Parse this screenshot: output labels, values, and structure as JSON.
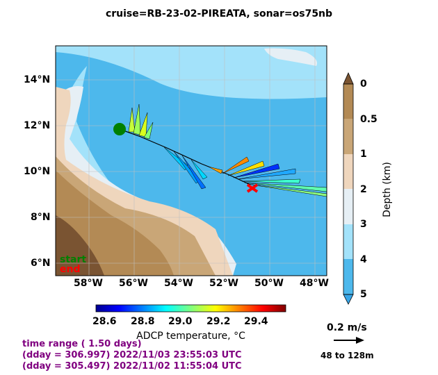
{
  "title": "cruise=RB-23-02-PIREATA,   sonar=os75nb",
  "map": {
    "lon_ticks": [
      "58°W",
      "56°W",
      "54°W",
      "52°W",
      "50°W",
      "48°W"
    ],
    "lat_ticks": [
      "14°N",
      "12°N",
      "10°N",
      "8°N",
      "6°N"
    ],
    "legend_start": "start",
    "legend_end": "end",
    "start_color": "#008000",
    "end_color": "#ff0000"
  },
  "depth_colorbar": {
    "label": "Depth (km)",
    "ticks": [
      "0",
      "0.5",
      "1",
      "2",
      "3",
      "4",
      "5"
    ],
    "colors": [
      "#b38a55",
      "#c9a677",
      "#efd6bd",
      "#e6eff5",
      "#a3e2fa",
      "#4db8ec"
    ]
  },
  "temp_colorbar": {
    "label": "ADCP temperature, °C",
    "ticks": [
      "28.6",
      "28.8",
      "29.0",
      "29.2",
      "29.4"
    ],
    "min": 28.55,
    "max": 29.55
  },
  "scale": {
    "speed_label": "0.2 m/s",
    "depth_range": "48 to 128m"
  },
  "time_info": {
    "range": "time range ( 1.50 days)",
    "end_line": "(dday = 306.997) 2022/11/03 23:55:03 UTC",
    "start_line": "(dday = 305.497) 2022/11/02 11:55:04 UTC"
  }
}
